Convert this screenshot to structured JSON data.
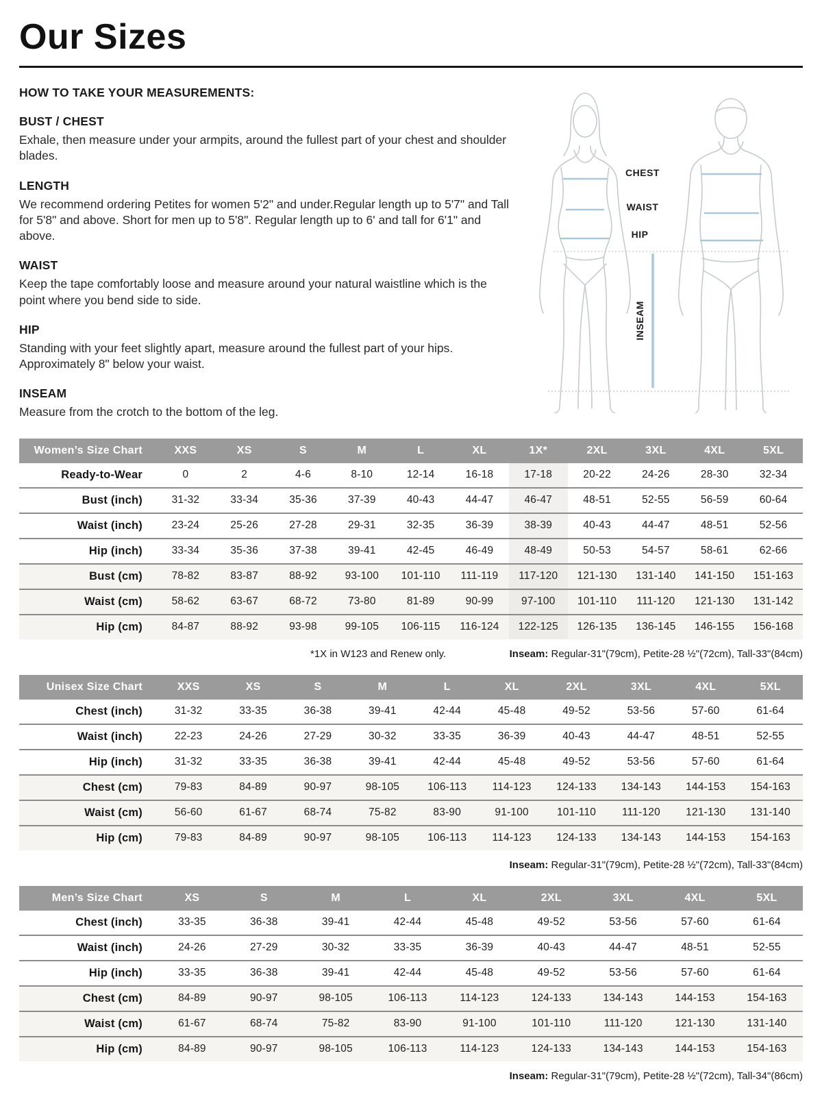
{
  "header": {
    "title": "Our Sizes"
  },
  "measurements": {
    "heading": "HOW TO TAKE YOUR MEASUREMENTS:",
    "sections": [
      {
        "heading": "BUST / CHEST",
        "body": "Exhale, then measure under your armpits, around the fullest part of your chest and shoulder blades."
      },
      {
        "heading": "LENGTH",
        "body": "We recommend ordering Petites for women 5'2\" and under.Regular length up to 5'7\" and Tall for 5'8\" and above. Short for men up to 5'8\". Regular length up to 6' and tall for 6'1\" and above."
      },
      {
        "heading": "WAIST",
        "body": "Keep the tape comfortably loose and measure around your natural waistline which is the point where you bend side to side."
      },
      {
        "heading": "HIP",
        "body": "Standing with your feet slightly apart, measure around the fullest part of your hips. Approximately 8\" below your waist."
      },
      {
        "heading": "INSEAM",
        "body": "Measure from the crotch to the bottom of the leg."
      }
    ]
  },
  "diagram": {
    "labels": {
      "chest": "CHEST",
      "waist": "WAIST",
      "hip": "HIP",
      "inseam": "INSEAM"
    },
    "colors": {
      "outline": "#c6cbce",
      "measure_line": "#a9c9da",
      "dotted": "#c3c3c3",
      "label_text": "#1c1c1c"
    }
  },
  "colors": {
    "table_header_bg": "#9b9b9b",
    "table_header_text": "#ffffff",
    "shaded_row_bg": "#f5f4f1",
    "highlight_col_bg": "#f1f0ee",
    "row_divider": "#8c8c8c"
  },
  "tables": [
    {
      "name": "womens-size-chart",
      "header": [
        "Women’s Size Chart",
        "XXS",
        "XS",
        "S",
        "M",
        "L",
        "XL",
        "1X*",
        "2XL",
        "3XL",
        "4XL",
        "5XL"
      ],
      "highlight_col": 7,
      "shaded_rows": [
        4,
        5,
        6
      ],
      "rows": [
        [
          "Ready-to-Wear",
          "0",
          "2",
          "4-6",
          "8-10",
          "12-14",
          "16-18",
          "17-18",
          "20-22",
          "24-26",
          "28-30",
          "32-34"
        ],
        [
          "Bust (inch)",
          "31-32",
          "33-34",
          "35-36",
          "37-39",
          "40-43",
          "44-47",
          "46-47",
          "48-51",
          "52-55",
          "56-59",
          "60-64"
        ],
        [
          "Waist (inch)",
          "23-24",
          "25-26",
          "27-28",
          "29-31",
          "32-35",
          "36-39",
          "38-39",
          "40-43",
          "44-47",
          "48-51",
          "52-56"
        ],
        [
          "Hip (inch)",
          "33-34",
          "35-36",
          "37-38",
          "39-41",
          "42-45",
          "46-49",
          "48-49",
          "50-53",
          "54-57",
          "58-61",
          "62-66"
        ],
        [
          "Bust (cm)",
          "78-82",
          "83-87",
          "88-92",
          "93-100",
          "101-110",
          "111-119",
          "117-120",
          "121-130",
          "131-140",
          "141-150",
          "151-163"
        ],
        [
          "Waist (cm)",
          "58-62",
          "63-67",
          "68-72",
          "73-80",
          "81-89",
          "90-99",
          "97-100",
          "101-110",
          "111-120",
          "121-130",
          "131-142"
        ],
        [
          "Hip (cm)",
          "84-87",
          "88-92",
          "93-98",
          "99-105",
          "106-115",
          "116-124",
          "122-125",
          "126-135",
          "136-145",
          "146-155",
          "156-168"
        ]
      ],
      "notes": {
        "left": "*1X in W123 and Renew only.",
        "right_bold": "Inseam:",
        "right_text": " Regular-31\"(79cm), Petite-28 ½\"(72cm), Tall-33\"(84cm)"
      }
    },
    {
      "name": "unisex-size-chart",
      "header": [
        "Unisex Size Chart",
        "XXS",
        "XS",
        "S",
        "M",
        "L",
        "XL",
        "2XL",
        "3XL",
        "4XL",
        "5XL"
      ],
      "highlight_col": -1,
      "shaded_rows": [
        3,
        4,
        5
      ],
      "rows": [
        [
          "Chest (inch)",
          "31-32",
          "33-35",
          "36-38",
          "39-41",
          "42-44",
          "45-48",
          "49-52",
          "53-56",
          "57-60",
          "61-64"
        ],
        [
          "Waist (inch)",
          "22-23",
          "24-26",
          "27-29",
          "30-32",
          "33-35",
          "36-39",
          "40-43",
          "44-47",
          "48-51",
          "52-55"
        ],
        [
          "Hip (inch)",
          "31-32",
          "33-35",
          "36-38",
          "39-41",
          "42-44",
          "45-48",
          "49-52",
          "53-56",
          "57-60",
          "61-64"
        ],
        [
          "Chest (cm)",
          "79-83",
          "84-89",
          "90-97",
          "98-105",
          "106-113",
          "114-123",
          "124-133",
          "134-143",
          "144-153",
          "154-163"
        ],
        [
          "Waist (cm)",
          "56-60",
          "61-67",
          "68-74",
          "75-82",
          "83-90",
          "91-100",
          "101-110",
          "111-120",
          "121-130",
          "131-140"
        ],
        [
          "Hip (cm)",
          "79-83",
          "84-89",
          "90-97",
          "98-105",
          "106-113",
          "114-123",
          "124-133",
          "134-143",
          "144-153",
          "154-163"
        ]
      ],
      "notes": {
        "left": "",
        "right_bold": "Inseam:",
        "right_text": " Regular-31\"(79cm), Petite-28 ½\"(72cm), Tall-33\"(84cm)"
      }
    },
    {
      "name": "mens-size-chart",
      "header": [
        "Men’s Size Chart",
        "XS",
        "S",
        "M",
        "L",
        "XL",
        "2XL",
        "3XL",
        "4XL",
        "5XL"
      ],
      "highlight_col": -1,
      "shaded_rows": [
        3,
        4,
        5
      ],
      "rows": [
        [
          "Chest (inch)",
          "33-35",
          "36-38",
          "39-41",
          "42-44",
          "45-48",
          "49-52",
          "53-56",
          "57-60",
          "61-64"
        ],
        [
          "Waist (inch)",
          "24-26",
          "27-29",
          "30-32",
          "33-35",
          "36-39",
          "40-43",
          "44-47",
          "48-51",
          "52-55"
        ],
        [
          "Hip (inch)",
          "33-35",
          "36-38",
          "39-41",
          "42-44",
          "45-48",
          "49-52",
          "53-56",
          "57-60",
          "61-64"
        ],
        [
          "Chest (cm)",
          "84-89",
          "90-97",
          "98-105",
          "106-113",
          "114-123",
          "124-133",
          "134-143",
          "144-153",
          "154-163"
        ],
        [
          "Waist (cm)",
          "61-67",
          "68-74",
          "75-82",
          "83-90",
          "91-100",
          "101-110",
          "111-120",
          "121-130",
          "131-140"
        ],
        [
          "Hip (cm)",
          "84-89",
          "90-97",
          "98-105",
          "106-113",
          "114-123",
          "124-133",
          "134-143",
          "144-153",
          "154-163"
        ]
      ],
      "notes": {
        "left": "",
        "right_bold": "Inseam:",
        "right_text": " Regular-31\"(79cm), Petite-28 ½\"(72cm), Tall-34\"(86cm)"
      }
    }
  ]
}
